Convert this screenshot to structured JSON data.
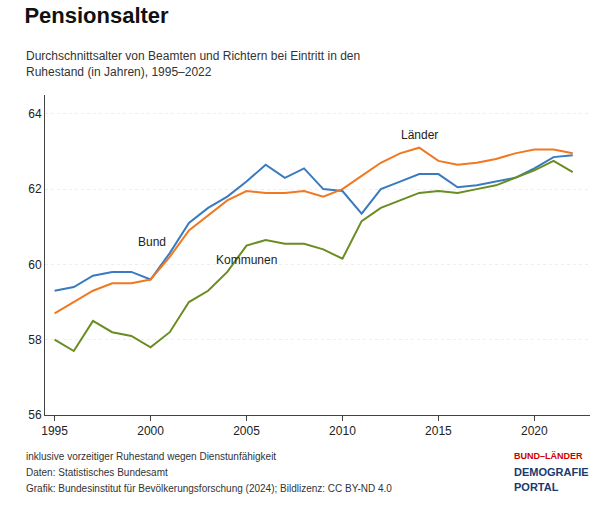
{
  "chart_data": {
    "type": "line",
    "title": "Pensionsalter",
    "subtitle": "Durchschnittsalter von Beamten und Richtern bei Eintritt in den\nRuhestand (in Jahren), 1995–2022",
    "x": [
      1995,
      1996,
      1997,
      1998,
      1999,
      2000,
      2001,
      2002,
      2003,
      2004,
      2005,
      2006,
      2007,
      2008,
      2009,
      2010,
      2011,
      2012,
      2013,
      2014,
      2015,
      2016,
      2017,
      2018,
      2019,
      2020,
      2021,
      2022
    ],
    "series": [
      {
        "name": "Bund",
        "color": "#3a7abf",
        "values": [
          59.3,
          59.4,
          59.7,
          59.8,
          59.8,
          59.6,
          60.3,
          61.1,
          61.5,
          61.8,
          62.2,
          62.65,
          62.3,
          62.55,
          62.0,
          61.95,
          61.35,
          62.0,
          62.2,
          62.4,
          62.4,
          62.05,
          62.1,
          62.2,
          62.3,
          62.55,
          62.85,
          62.9
        ]
      },
      {
        "name": "Länder",
        "color": "#f07820",
        "values": [
          58.7,
          59.0,
          59.3,
          59.5,
          59.5,
          59.6,
          60.2,
          60.9,
          61.3,
          61.7,
          61.95,
          61.9,
          61.9,
          61.95,
          61.8,
          62.0,
          62.35,
          62.7,
          62.95,
          63.1,
          62.75,
          62.65,
          62.7,
          62.8,
          62.95,
          63.05,
          63.05,
          62.95
        ]
      },
      {
        "name": "Kommunen",
        "color": "#6a8c20",
        "values": [
          58.0,
          57.7,
          58.5,
          58.2,
          58.1,
          57.8,
          58.2,
          59.0,
          59.3,
          59.8,
          60.5,
          60.65,
          60.55,
          60.55,
          60.4,
          60.15,
          61.15,
          61.5,
          61.7,
          61.9,
          61.95,
          61.9,
          62.0,
          62.1,
          62.3,
          62.5,
          62.75,
          62.45
        ]
      }
    ],
    "xlim": [
      1994.5,
      2022.9
    ],
    "xticks": [
      1995,
      2000,
      2005,
      2010,
      2015,
      2020
    ],
    "ylim": [
      56,
      64.5
    ],
    "yticks": [
      56,
      58,
      60,
      62,
      64
    ],
    "grid": true,
    "annotations": [
      "inklusive vorzeitiger Ruhestand wegen Dienstunfähigkeit",
      "Daten: Statistisches Bundesamt",
      "Grafik: Bundesinstitut für Bevölkerungsforschung (2024); Bildlizenz: CC BY-ND 4.0"
    ],
    "logo": [
      {
        "text": "BUND–LÄNDER",
        "color": "#cc0000"
      },
      {
        "text": "DEMOGRAFIE",
        "color": "#1a3a6e"
      },
      {
        "text": "PORTAL",
        "color": "#1a3a6e"
      }
    ]
  }
}
